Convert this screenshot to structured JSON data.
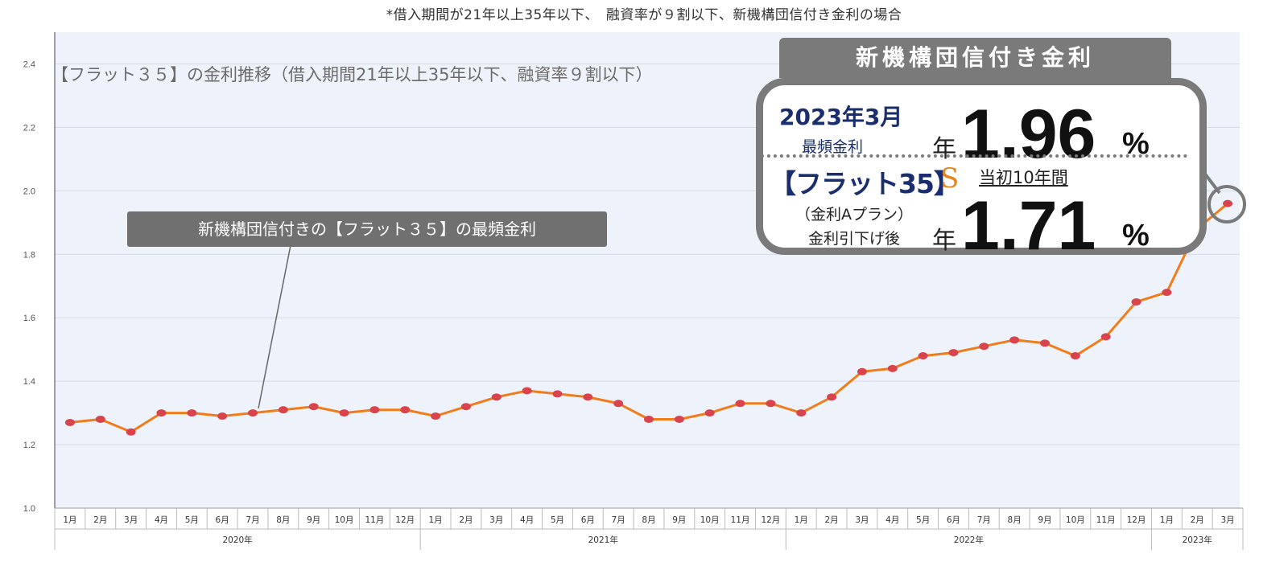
{
  "note": "*借入期間が21年以上35年以下、　融資率が９割以下、新機構団信付き金利の場合",
  "callout": "新機構団信付きの【フラット３５】の最頻金利",
  "info_box": {
    "title": "新機構団信付き金利",
    "date": "2023年3月",
    "label_mode": "最頻金利",
    "nen": "年",
    "rate_mode": "1.96",
    "percent": "%",
    "logo_text": "【フラット35】",
    "s_logo": "S",
    "initial_period": "当初10年間",
    "plan": "（金利Aプラン）",
    "after_label": "金利引下げ後",
    "rate_after": "1.71"
  },
  "chart_data": {
    "type": "line",
    "title": "【フラット３５】の金利推移（借入期間21年以上35年以下、融資率９割以下）",
    "ylim": [
      1.0,
      2.4
    ],
    "yticks": [
      "1.0",
      "1.2",
      "1.4",
      "1.6",
      "1.8",
      "2.0",
      "2.2",
      "2.4"
    ],
    "grid": true,
    "color": "#f07d1a",
    "marker_color": "#d9434c",
    "categories": [
      "1月",
      "2月",
      "3月",
      "4月",
      "5月",
      "6月",
      "7月",
      "8月",
      "9月",
      "10月",
      "11月",
      "12月",
      "1月",
      "2月",
      "3月",
      "4月",
      "5月",
      "6月",
      "7月",
      "8月",
      "9月",
      "10月",
      "11月",
      "12月",
      "1月",
      "2月",
      "3月",
      "4月",
      "5月",
      "6月",
      "7月",
      "8月",
      "9月",
      "10月",
      "11月",
      "12月",
      "1月",
      "2月",
      "3月"
    ],
    "years": [
      {
        "label": "2020年",
        "count": 12
      },
      {
        "label": "2021年",
        "count": 12
      },
      {
        "label": "2022年",
        "count": 12
      },
      {
        "label": "2023年",
        "count": 3
      }
    ],
    "series": [
      {
        "values": [
          1.27,
          1.28,
          1.24,
          1.3,
          1.3,
          1.29,
          1.3,
          1.31,
          1.32,
          1.3,
          1.31,
          1.31,
          1.29,
          1.32,
          1.35,
          1.37,
          1.36,
          1.35,
          1.33,
          1.28,
          1.28,
          1.3,
          1.33,
          1.33,
          1.3,
          1.35,
          1.43,
          1.44,
          1.48,
          1.49,
          1.51,
          1.53,
          1.52,
          1.48,
          1.54,
          1.65,
          1.68,
          1.88,
          1.96
        ]
      }
    ]
  }
}
